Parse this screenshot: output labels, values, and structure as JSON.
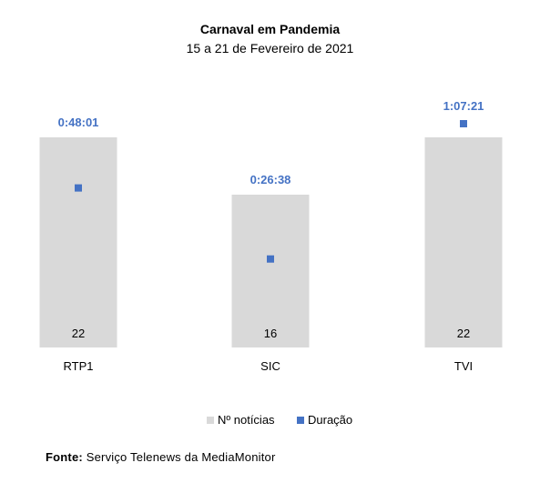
{
  "title": "Carnaval em Pandemia",
  "subtitle": "15 a 21 de Fevereiro de 2021",
  "source_label": "Fonte:",
  "source_text": "Serviço Telenews da MediaMonitor",
  "colors": {
    "bars": "#d9d9d9",
    "markers": "#4472c4",
    "duration_labels": "#4472c4",
    "text": "#000000"
  },
  "chart_data": {
    "type": "bar",
    "categories": [
      "RTP1",
      "SIC",
      "TVI"
    ],
    "series": [
      {
        "name": "Nº notícias",
        "type": "bar",
        "values": [
          22,
          16,
          22
        ],
        "labels": [
          "22",
          "16",
          "22"
        ]
      },
      {
        "name": "Duração",
        "type": "scatter",
        "values": [
          "0:48:01",
          "0:26:38",
          "1:07:21"
        ],
        "labels": [
          "0:48:01",
          "0:26:38",
          "1:07:21"
        ]
      }
    ],
    "legend_position": "bottom",
    "grid": false,
    "axes_visible": false
  }
}
